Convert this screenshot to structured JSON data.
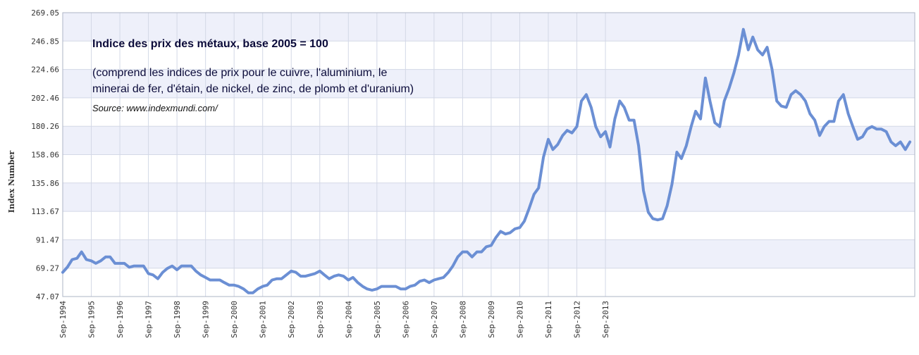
{
  "chart_data": {
    "type": "line",
    "title": "Indice des prix des métaux, base 2005 = 100",
    "subtitle_lines": [
      "(comprend les indices de prix pour le cuivre, l'aluminium, le",
      "minerai de fer, d'étain, de nickel, de zinc, de plomb et d'uranium)"
    ],
    "source": "Source: www.indexmundi.com/",
    "ylabel": "Index Number",
    "xlabel": "",
    "ylim": [
      47.07,
      269.05
    ],
    "yticks": [
      "269.05",
      "246.85",
      "224.66",
      "202.46",
      "180.26",
      "158.06",
      "135.86",
      "113.67",
      "91.47",
      "69.27",
      "47.07"
    ],
    "xticks": [
      "Sep-1994",
      "Sep-1995",
      "Sep-1996",
      "Sep-1997",
      "Sep-1998",
      "Sep-1999",
      "Sep-2000",
      "Sep-2001",
      "Sep-2002",
      "Sep-2003",
      "Sep-2004",
      "Sep-2005",
      "Sep-2006",
      "Sep-2007",
      "Sep-2008",
      "Sep-2009",
      "Sep-2010",
      "Sep-2011",
      "Sep-2012",
      "Sep-2013"
    ],
    "grid": true,
    "line_color": "#6b8fd4",
    "series": [
      {
        "values": [
          [
            1994.67,
            66
          ],
          [
            1994.83,
            70
          ],
          [
            1995.0,
            76
          ],
          [
            1995.17,
            77
          ],
          [
            1995.33,
            82
          ],
          [
            1995.5,
            76
          ],
          [
            1995.67,
            75
          ],
          [
            1995.83,
            73
          ],
          [
            1996.0,
            75
          ],
          [
            1996.17,
            78
          ],
          [
            1996.33,
            78
          ],
          [
            1996.5,
            73
          ],
          [
            1996.67,
            73
          ],
          [
            1996.83,
            73
          ],
          [
            1997.0,
            70
          ],
          [
            1997.17,
            71
          ],
          [
            1997.33,
            71
          ],
          [
            1997.5,
            71
          ],
          [
            1997.67,
            65
          ],
          [
            1997.83,
            64
          ],
          [
            1998.0,
            61
          ],
          [
            1998.17,
            66
          ],
          [
            1998.33,
            69
          ],
          [
            1998.5,
            71
          ],
          [
            1998.67,
            68
          ],
          [
            1998.83,
            71
          ],
          [
            1999.0,
            71
          ],
          [
            1999.17,
            71
          ],
          [
            1999.33,
            67
          ],
          [
            1999.5,
            64
          ],
          [
            1999.67,
            62
          ],
          [
            1999.83,
            60
          ],
          [
            2000.0,
            60
          ],
          [
            2000.17,
            60
          ],
          [
            2000.33,
            58
          ],
          [
            2000.5,
            56
          ],
          [
            2000.67,
            56
          ],
          [
            2000.83,
            55
          ],
          [
            2001.0,
            53
          ],
          [
            2001.17,
            50
          ],
          [
            2001.33,
            50
          ],
          [
            2001.5,
            53
          ],
          [
            2001.67,
            55
          ],
          [
            2001.83,
            56
          ],
          [
            2002.0,
            60
          ],
          [
            2002.17,
            61
          ],
          [
            2002.33,
            61
          ],
          [
            2002.5,
            64
          ],
          [
            2002.67,
            67
          ],
          [
            2002.83,
            66
          ],
          [
            2003.0,
            63
          ],
          [
            2003.17,
            63
          ],
          [
            2003.33,
            64
          ],
          [
            2003.5,
            65
          ],
          [
            2003.67,
            67
          ],
          [
            2003.83,
            64
          ],
          [
            2004.0,
            61
          ],
          [
            2004.17,
            63
          ],
          [
            2004.33,
            64
          ],
          [
            2004.5,
            63
          ],
          [
            2004.67,
            60
          ],
          [
            2004.83,
            62
          ],
          [
            2005.0,
            58
          ],
          [
            2005.17,
            55
          ],
          [
            2005.33,
            53
          ],
          [
            2005.5,
            52
          ],
          [
            2005.67,
            53
          ],
          [
            2005.83,
            55
          ],
          [
            2006.0,
            55
          ],
          [
            2006.17,
            55
          ],
          [
            2006.33,
            55
          ],
          [
            2006.5,
            53
          ],
          [
            2006.67,
            53
          ],
          [
            2006.83,
            55
          ],
          [
            2007.0,
            56
          ],
          [
            2007.17,
            59
          ],
          [
            2007.33,
            60
          ],
          [
            2007.5,
            58
          ],
          [
            2007.67,
            60
          ],
          [
            2007.83,
            61
          ],
          [
            2008.0,
            62
          ],
          [
            2008.17,
            66
          ],
          [
            2008.33,
            71
          ],
          [
            2008.5,
            78
          ],
          [
            2008.67,
            82
          ],
          [
            2008.83,
            82
          ],
          [
            2009.0,
            78
          ],
          [
            2009.17,
            82
          ],
          [
            2009.33,
            82
          ],
          [
            2009.5,
            86
          ],
          [
            2009.67,
            87
          ],
          [
            2009.83,
            93
          ],
          [
            2010.0,
            98
          ],
          [
            2010.17,
            96
          ],
          [
            2010.33,
            97
          ],
          [
            2010.5,
            100
          ],
          [
            2010.67,
            101
          ],
          [
            2010.83,
            106
          ],
          [
            2011.0,
            116
          ],
          [
            2011.17,
            127
          ],
          [
            2011.33,
            132
          ],
          [
            2011.5,
            156
          ],
          [
            2011.67,
            170
          ],
          [
            2011.83,
            162
          ],
          [
            2012.0,
            166
          ],
          [
            2012.17,
            173
          ],
          [
            2012.33,
            177
          ],
          [
            2012.5,
            175
          ],
          [
            2012.67,
            180
          ],
          [
            2012.83,
            200
          ],
          [
            2013.0,
            205
          ],
          [
            2013.17,
            195
          ],
          [
            2013.33,
            180
          ],
          [
            2013.5,
            172
          ],
          [
            2013.67,
            176
          ],
          [
            2013.83,
            164
          ],
          [
            2014.0,
            186
          ],
          [
            2014.17,
            200
          ],
          [
            2014.33,
            195
          ],
          [
            2014.5,
            185
          ],
          [
            2014.67,
            185
          ],
          [
            2014.83,
            165
          ],
          [
            2015.0,
            130
          ],
          [
            2015.17,
            113
          ],
          [
            2015.33,
            108
          ],
          [
            2015.5,
            107
          ],
          [
            2015.67,
            108
          ],
          [
            2015.83,
            118
          ],
          [
            2016.0,
            135
          ],
          [
            2016.17,
            160
          ],
          [
            2016.33,
            155
          ],
          [
            2016.5,
            165
          ],
          [
            2016.67,
            180
          ],
          [
            2016.83,
            192
          ],
          [
            2017.0,
            186
          ],
          [
            2017.17,
            218
          ],
          [
            2017.33,
            200
          ],
          [
            2017.5,
            183
          ],
          [
            2017.67,
            180
          ],
          [
            2017.83,
            200
          ],
          [
            2018.0,
            210
          ],
          [
            2018.17,
            222
          ],
          [
            2018.33,
            236
          ],
          [
            2018.5,
            256
          ],
          [
            2018.67,
            240
          ],
          [
            2018.83,
            250
          ],
          [
            2019.0,
            240
          ],
          [
            2019.17,
            236
          ],
          [
            2019.33,
            242
          ],
          [
            2019.5,
            225
          ],
          [
            2019.67,
            200
          ],
          [
            2019.83,
            196
          ],
          [
            2020.0,
            195
          ],
          [
            2020.17,
            205
          ],
          [
            2020.33,
            208
          ],
          [
            2020.5,
            205
          ],
          [
            2020.67,
            200
          ],
          [
            2020.83,
            190
          ],
          [
            2021.0,
            185
          ],
          [
            2021.17,
            173
          ],
          [
            2021.33,
            180
          ],
          [
            2021.5,
            184
          ],
          [
            2021.67,
            184
          ],
          [
            2021.83,
            200
          ],
          [
            2022.0,
            205
          ],
          [
            2022.17,
            190
          ],
          [
            2022.33,
            180
          ],
          [
            2022.5,
            170
          ],
          [
            2022.67,
            172
          ],
          [
            2022.83,
            178
          ],
          [
            2023.0,
            180
          ],
          [
            2023.17,
            178
          ],
          [
            2023.33,
            178
          ],
          [
            2023.5,
            176
          ],
          [
            2023.67,
            168
          ],
          [
            2023.83,
            165
          ],
          [
            2024.0,
            168
          ],
          [
            2024.17,
            162
          ],
          [
            2024.33,
            168
          ]
        ]
      }
    ]
  }
}
